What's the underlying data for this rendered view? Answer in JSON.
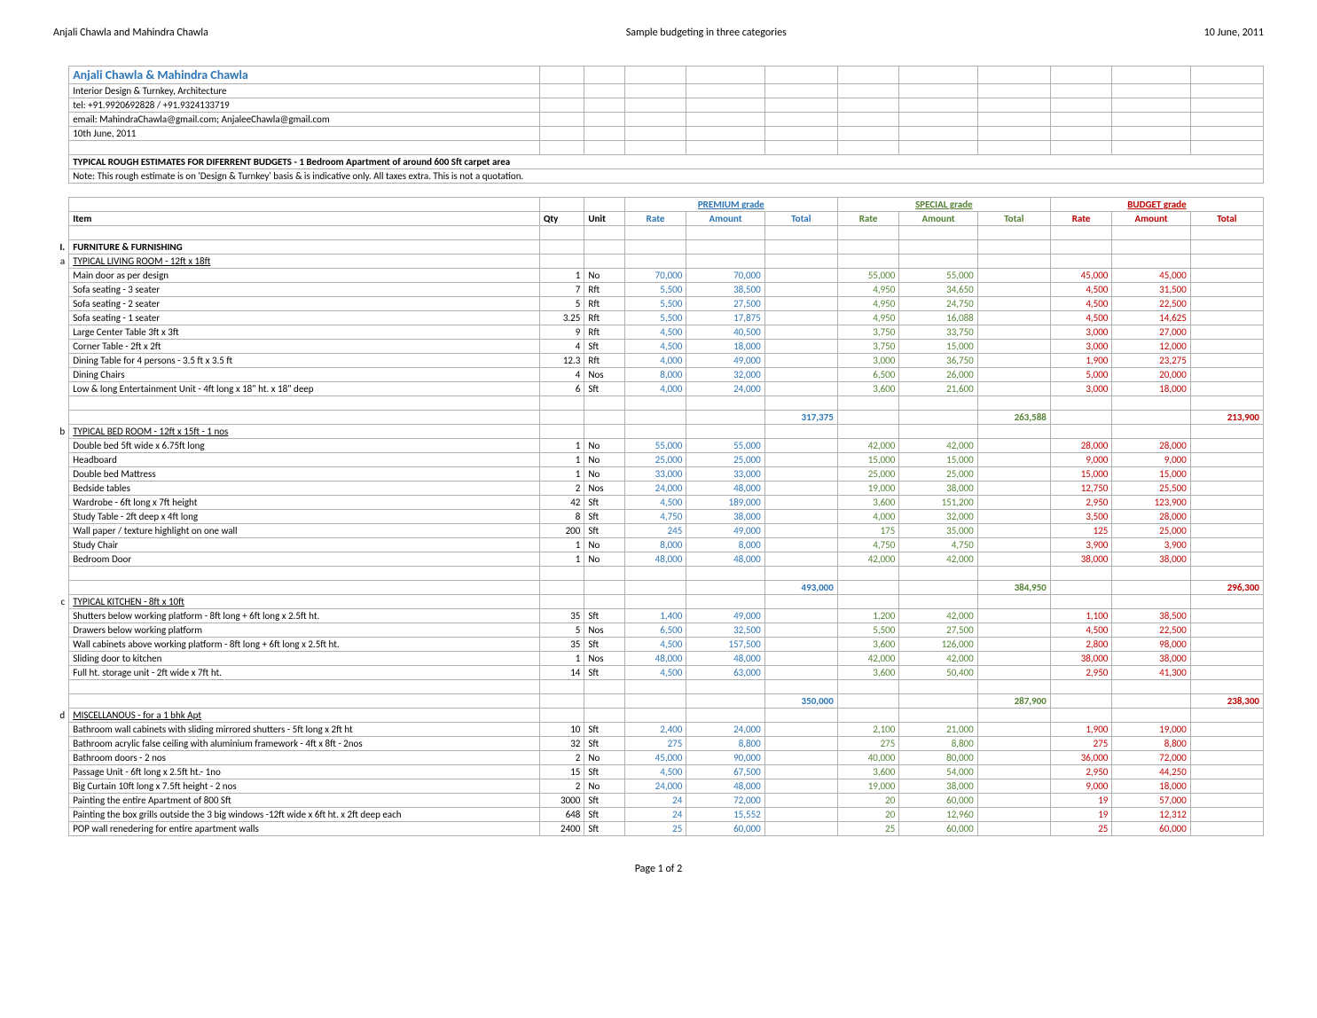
{
  "docHeader": {
    "left": "Anjali Chawla and Mahindra Chawla",
    "center": "Sample budgeting in three categories",
    "right": "10 June, 2011"
  },
  "pageFooter": "Page 1 of 2",
  "titleBlock": {
    "name": "Anjali Chawla & Mahindra Chawla",
    "line1": "Interior Design & Turnkey, Architecture",
    "line2": "tel: +91.9920692828 / +91.9324133719",
    "line3": "email: MahindraChawla@gmail.com; AnjaleeChawla@gmail.com",
    "line4": "10th June, 2011",
    "heading": "TYPICAL ROUGH  ESTIMATES FOR DIFERRENT BUDGETS - 1 Bedroom Apartment of around 600 Sft carpet area",
    "note": "Note: This rough estimate is on 'Design & Turnkey' basis & is indicative only. All taxes extra. This is not a quotation."
  },
  "grades": {
    "premium": "PREMIUM grade",
    "special": "SPECIAL grade",
    "budget": "BUDGET grade"
  },
  "cols": {
    "item": "Item",
    "qty": "Qty",
    "unit": "Unit",
    "rate": "Rate",
    "amount": "Amount",
    "total": "Total"
  },
  "colors": {
    "premium": "#2e75b6",
    "special": "#548235",
    "budget": "#c00000",
    "title": "#2e75b6",
    "border": "#b0b0b0"
  },
  "sections": [
    {
      "idx": "I.",
      "title": "FURNITURE & FURNISHING",
      "groups": [
        {
          "idx": "a",
          "title": "TYPICAL LIVING ROOM - 12ft x 18ft",
          "rows": [
            {
              "item": "Main door as per design",
              "qty": "1",
              "unit": "No",
              "p_rate": "70,000",
              "p_amt": "70,000",
              "s_rate": "55,000",
              "s_amt": "55,000",
              "b_rate": "45,000",
              "b_amt": "45,000"
            },
            {
              "item": "Sofa seating - 3 seater",
              "qty": "7",
              "unit": "Rft",
              "p_rate": "5,500",
              "p_amt": "38,500",
              "s_rate": "4,950",
              "s_amt": "34,650",
              "b_rate": "4,500",
              "b_amt": "31,500"
            },
            {
              "item": "Sofa seating - 2 seater",
              "qty": "5",
              "unit": "Rft",
              "p_rate": "5,500",
              "p_amt": "27,500",
              "s_rate": "4,950",
              "s_amt": "24,750",
              "b_rate": "4,500",
              "b_amt": "22,500"
            },
            {
              "item": "Sofa seating - 1 seater",
              "qty": "3.25",
              "unit": "Rft",
              "p_rate": "5,500",
              "p_amt": "17,875",
              "s_rate": "4,950",
              "s_amt": "16,088",
              "b_rate": "4,500",
              "b_amt": "14,625"
            },
            {
              "item": "Large Center Table 3ft x 3ft",
              "qty": "9",
              "unit": "Rft",
              "p_rate": "4,500",
              "p_amt": "40,500",
              "s_rate": "3,750",
              "s_amt": "33,750",
              "b_rate": "3,000",
              "b_amt": "27,000"
            },
            {
              "item": "Corner Table - 2ft x 2ft",
              "qty": "4",
              "unit": "Sft",
              "p_rate": "4,500",
              "p_amt": "18,000",
              "s_rate": "3,750",
              "s_amt": "15,000",
              "b_rate": "3,000",
              "b_amt": "12,000"
            },
            {
              "item": "Dining Table for 4 persons - 3.5 ft x 3.5 ft",
              "qty": "12.3",
              "unit": "Rft",
              "p_rate": "4,000",
              "p_amt": "49,000",
              "s_rate": "3,000",
              "s_amt": "36,750",
              "b_rate": "1,900",
              "b_amt": "23,275"
            },
            {
              "item": "Dining Chairs",
              "qty": "4",
              "unit": "Nos",
              "p_rate": "8,000",
              "p_amt": "32,000",
              "s_rate": "6,500",
              "s_amt": "26,000",
              "b_rate": "5,000",
              "b_amt": "20,000"
            },
            {
              "item": "Low & long Entertainment Unit - 4ft long x 18\" ht. x 18\" deep",
              "qty": "6",
              "unit": "Sft",
              "p_rate": "4,000",
              "p_amt": "24,000",
              "s_rate": "3,600",
              "s_amt": "21,600",
              "b_rate": "3,000",
              "b_amt": "18,000"
            }
          ],
          "subtotal": {
            "p": "317,375",
            "s": "263,588",
            "b": "213,900"
          }
        },
        {
          "idx": "b",
          "title": "TYPICAL BED ROOM - 12ft x 15ft - 1 nos",
          "rows": [
            {
              "item": "Double bed 5ft wide x 6.75ft long",
              "qty": "1",
              "unit": "No",
              "p_rate": "55,000",
              "p_amt": "55,000",
              "s_rate": "42,000",
              "s_amt": "42,000",
              "b_rate": "28,000",
              "b_amt": "28,000"
            },
            {
              "item": "Headboard",
              "qty": "1",
              "unit": "No",
              "p_rate": "25,000",
              "p_amt": "25,000",
              "s_rate": "15,000",
              "s_amt": "15,000",
              "b_rate": "9,000",
              "b_amt": "9,000"
            },
            {
              "item": "Double bed Mattress",
              "qty": "1",
              "unit": "No",
              "p_rate": "33,000",
              "p_amt": "33,000",
              "s_rate": "25,000",
              "s_amt": "25,000",
              "b_rate": "15,000",
              "b_amt": "15,000"
            },
            {
              "item": "Bedside tables",
              "qty": "2",
              "unit": "Nos",
              "p_rate": "24,000",
              "p_amt": "48,000",
              "s_rate": "19,000",
              "s_amt": "38,000",
              "b_rate": "12,750",
              "b_amt": "25,500"
            },
            {
              "item": "Wardrobe - 6ft long x 7ft height",
              "qty": "42",
              "unit": "Sft",
              "p_rate": "4,500",
              "p_amt": "189,000",
              "s_rate": "3,600",
              "s_amt": "151,200",
              "b_rate": "2,950",
              "b_amt": "123,900"
            },
            {
              "item": "Study Table - 2ft deep x 4ft long",
              "qty": "8",
              "unit": "Sft",
              "p_rate": "4,750",
              "p_amt": "38,000",
              "s_rate": "4,000",
              "s_amt": "32,000",
              "b_rate": "3,500",
              "b_amt": "28,000"
            },
            {
              "item": "Wall paper / texture highlight on one wall",
              "qty": "200",
              "unit": "Sft",
              "p_rate": "245",
              "p_amt": "49,000",
              "s_rate": "175",
              "s_amt": "35,000",
              "b_rate": "125",
              "b_amt": "25,000"
            },
            {
              "item": "Study Chair",
              "qty": "1",
              "unit": "No",
              "p_rate": "8,000",
              "p_amt": "8,000",
              "s_rate": "4,750",
              "s_amt": "4,750",
              "b_rate": "3,900",
              "b_amt": "3,900"
            },
            {
              "item": "Bedroom Door",
              "qty": "1",
              "unit": "No",
              "p_rate": "48,000",
              "p_amt": "48,000",
              "s_rate": "42,000",
              "s_amt": "42,000",
              "b_rate": "38,000",
              "b_amt": "38,000"
            }
          ],
          "subtotal": {
            "p": "493,000",
            "s": "384,950",
            "b": "296,300"
          }
        },
        {
          "idx": "c",
          "title": "TYPICAL KITCHEN - 8ft x 10ft",
          "rows": [
            {
              "item": "Shutters below working platform - 8ft long + 6ft long x 2.5ft ht.",
              "qty": "35",
              "unit": "Sft",
              "p_rate": "1,400",
              "p_amt": "49,000",
              "s_rate": "1,200",
              "s_amt": "42,000",
              "b_rate": "1,100",
              "b_amt": "38,500"
            },
            {
              "item": "Drawers below working platform",
              "qty": "5",
              "unit": "Nos",
              "p_rate": "6,500",
              "p_amt": "32,500",
              "s_rate": "5,500",
              "s_amt": "27,500",
              "b_rate": "4,500",
              "b_amt": "22,500"
            },
            {
              "item": "Wall cabinets above working platform  - 8ft long + 6ft long x 2.5ft ht.",
              "qty": "35",
              "unit": "Sft",
              "p_rate": "4,500",
              "p_amt": "157,500",
              "s_rate": "3,600",
              "s_amt": "126,000",
              "b_rate": "2,800",
              "b_amt": "98,000"
            },
            {
              "item": "Sliding door to kitchen",
              "qty": "1",
              "unit": "Nos",
              "p_rate": "48,000",
              "p_amt": "48,000",
              "s_rate": "42,000",
              "s_amt": "42,000",
              "b_rate": "38,000",
              "b_amt": "38,000"
            },
            {
              "item": "Full ht. storage unit - 2ft wide x 7ft ht.",
              "qty": "14",
              "unit": "Sft",
              "p_rate": "4,500",
              "p_amt": "63,000",
              "s_rate": "3,600",
              "s_amt": "50,400",
              "b_rate": "2,950",
              "b_amt": "41,300"
            }
          ],
          "subtotal": {
            "p": "350,000",
            "s": "287,900",
            "b": "238,300"
          }
        },
        {
          "idx": "d",
          "title": "MISCELLANOUS - for a 1 bhk Apt",
          "rows": [
            {
              "item": "Bathroom wall cabinets with sliding mirrored shutters - 5ft long x 2ft ht",
              "qty": "10",
              "unit": "Sft",
              "p_rate": "2,400",
              "p_amt": "24,000",
              "s_rate": "2,100",
              "s_amt": "21,000",
              "b_rate": "1,900",
              "b_amt": "19,000"
            },
            {
              "item": "Bathroom acrylic false ceiling with aluminium  framework - 4ft x 8ft -  2nos",
              "qty": "32",
              "unit": "Sft",
              "p_rate": "275",
              "p_amt": "8,800",
              "s_rate": "275",
              "s_amt": "8,800",
              "b_rate": "275",
              "b_amt": "8,800"
            },
            {
              "item": "Bathroom doors - 2 nos",
              "qty": "2",
              "unit": "No",
              "p_rate": "45,000",
              "p_amt": "90,000",
              "s_rate": "40,000",
              "s_amt": "80,000",
              "b_rate": "36,000",
              "b_amt": "72,000"
            },
            {
              "item": "Passage Unit  - 6ft long x 2.5ft ht.- 1no",
              "qty": "15",
              "unit": "Sft",
              "p_rate": "4,500",
              "p_amt": "67,500",
              "s_rate": "3,600",
              "s_amt": "54,000",
              "b_rate": "2,950",
              "b_amt": "44,250"
            },
            {
              "item": "Big Curtain 10ft long x 7.5ft height - 2 nos",
              "qty": "2",
              "unit": "No",
              "p_rate": "24,000",
              "p_amt": "48,000",
              "s_rate": "19,000",
              "s_amt": "38,000",
              "b_rate": "9,000",
              "b_amt": "18,000"
            },
            {
              "item": "Painting the entire Apartment of 800 Sft",
              "qty": "3000",
              "unit": "Sft",
              "p_rate": "24",
              "p_amt": "72,000",
              "s_rate": "20",
              "s_amt": "60,000",
              "b_rate": "19",
              "b_amt": "57,000"
            },
            {
              "item": "Painting the box grills outside the 3 big windows -12ft wide x 6ft ht. x 2ft deep each",
              "qty": "648",
              "unit": "Sft",
              "p_rate": "24",
              "p_amt": "15,552",
              "s_rate": "20",
              "s_amt": "12,960",
              "b_rate": "19",
              "b_amt": "12,312"
            },
            {
              "item": "POP wall renedering for entire apartment walls",
              "qty": "2400",
              "unit": "Sft",
              "p_rate": "25",
              "p_amt": "60,000",
              "s_rate": "25",
              "s_amt": "60,000",
              "b_rate": "25",
              "b_amt": "60,000"
            }
          ]
        }
      ]
    }
  ]
}
